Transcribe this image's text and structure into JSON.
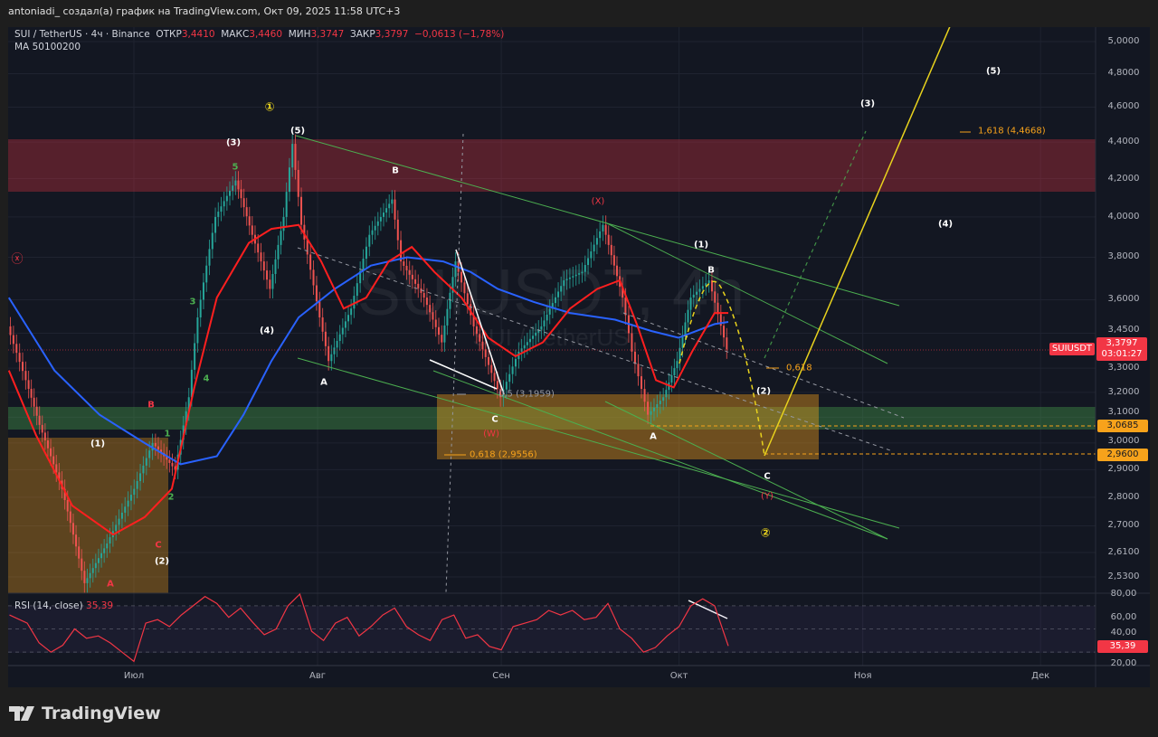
{
  "caption": "antoniadi_ создал(а) график на TradingView.com, Окт 09, 2025 11:58 UTC+3",
  "legend": {
    "symbol": "SUI / TetherUS · 4ч · Binance",
    "open_label": "ОТКР",
    "open": "3,4410",
    "high_label": "МАКС",
    "high": "3,4460",
    "low_label": "МИН",
    "low": "3,3747",
    "close_label": "ЗАКР",
    "close": "3,3797",
    "change": "−0,0613 (−1,78%)",
    "ma": "MA 50100200",
    "rsi_label": "RSI (14, close)",
    "rsi_value": "35,39"
  },
  "watermark": {
    "line1": "SUIUSDT, 4h",
    "line2": "SUI / TetherUS"
  },
  "badges": {
    "symbol": "SUIUSDT",
    "price": "3,3797",
    "countdown": "03:01:27",
    "level1": "3,0685",
    "level2": "2,9600",
    "rsi": "35,39"
  },
  "colors": {
    "up": "#26a69a",
    "down": "#ef5350",
    "ma50": "#ff1f1f",
    "ma200": "#2962ff",
    "rsi": "#f23645",
    "fib": "#f7a21b"
  },
  "fib": {
    "f05": "0,5 (3,1959)",
    "f0618": "0,618 (2,9556)",
    "f0618b": "0,618",
    "f1618": "1,618 (4,4668)"
  },
  "annotations": {
    "circ1": "①",
    "circ2": "②",
    "circx": "ⓧ",
    "w3a": "(3)",
    "w5a": "(5)",
    "w4a": "(4)",
    "w1a": "(1)",
    "w2a": "(2)",
    "w1b": "(1)",
    "w2b": "(2)",
    "w3b": "(3)",
    "w4b": "(4)",
    "w5b": "(5)",
    "g1": "1",
    "g2": "2",
    "g3": "3",
    "g4": "4",
    "g5": "5",
    "rA1": "A",
    "rB1": "B",
    "rC1": "C",
    "A1": "A",
    "B1": "B",
    "C1": "C",
    "A2": "A",
    "B2": "B",
    "C2": "C",
    "W": "(W)",
    "X": "(X)",
    "Y": "(Y)"
  },
  "brand": "TradingView",
  "chart_data": {
    "type": "candlestick",
    "title": "SUI / TetherUS · 4ч · Binance",
    "x_unit": "days since Jul 1, 2025",
    "y_scale": "log",
    "ylim": [
      2.45,
      5.05
    ],
    "y_ticks": [
      "5,0000",
      "4,8000",
      "4,6000",
      "4,4000",
      "4,2000",
      "4,0000",
      "3,8000",
      "3,6000",
      "3,4500",
      "3,3000",
      "3,2000",
      "3,1000",
      "3,0000",
      "2,9000",
      "2,8000",
      "2,7000",
      "2,6100",
      "2,5300"
    ],
    "y_tick_values": [
      5.0,
      4.8,
      4.6,
      4.4,
      4.2,
      4.0,
      3.8,
      3.6,
      3.45,
      3.3,
      3.2,
      3.1,
      3.0,
      2.9,
      2.8,
      2.7,
      2.61,
      2.53
    ],
    "x_ticks": [
      {
        "label": "Июл",
        "day": 0
      },
      {
        "label": "Авг",
        "day": 31
      },
      {
        "label": "Сен",
        "day": 62
      },
      {
        "label": "Окт",
        "day": 92
      },
      {
        "label": "Ноя",
        "day": 123
      },
      {
        "label": "Дек",
        "day": 153
      }
    ],
    "xlim": [
      -21.5,
      162
    ],
    "price": [
      [
        -21.1,
        3.48
      ],
      [
        -18,
        3.25
      ],
      [
        -15.7,
        3.07
      ],
      [
        -11.9,
        2.83
      ],
      [
        -8.1,
        2.51
      ],
      [
        -4.3,
        2.64
      ],
      [
        0.3,
        2.83
      ],
      [
        3.4,
        3.0
      ],
      [
        7.2,
        2.9
      ],
      [
        9.5,
        3.18
      ],
      [
        11,
        3.52
      ],
      [
        14,
        4.0
      ],
      [
        17.4,
        4.19
      ],
      [
        20.2,
        3.91
      ],
      [
        23.2,
        3.65
      ],
      [
        25.5,
        4.0
      ],
      [
        27,
        4.39
      ],
      [
        28.5,
        3.96
      ],
      [
        31.6,
        3.52
      ],
      [
        33.1,
        3.33
      ],
      [
        36.9,
        3.56
      ],
      [
        40,
        3.91
      ],
      [
        43.8,
        4.09
      ],
      [
        45.3,
        3.78
      ],
      [
        49.2,
        3.61
      ],
      [
        52.2,
        3.41
      ],
      [
        54.5,
        3.78
      ],
      [
        57.6,
        3.48
      ],
      [
        62.1,
        3.18
      ],
      [
        65.2,
        3.37
      ],
      [
        69,
        3.48
      ],
      [
        72.8,
        3.69
      ],
      [
        75.9,
        3.73
      ],
      [
        79.4,
        3.96
      ],
      [
        82.7,
        3.61
      ],
      [
        84.3,
        3.37
      ],
      [
        87,
        3.11
      ],
      [
        89.6,
        3.18
      ],
      [
        91.9,
        3.33
      ],
      [
        94.2,
        3.61
      ],
      [
        97.3,
        3.69
      ],
      [
        100.3,
        3.3797
      ]
    ],
    "ma50": [
      [
        -21.1,
        3.29
      ],
      [
        -16.5,
        3.03
      ],
      [
        -10.4,
        2.77
      ],
      [
        -3.5,
        2.67
      ],
      [
        1.8,
        2.73
      ],
      [
        6.4,
        2.83
      ],
      [
        10.2,
        3.22
      ],
      [
        14,
        3.61
      ],
      [
        19.4,
        3.87
      ],
      [
        23.2,
        3.94
      ],
      [
        27.8,
        3.96
      ],
      [
        31.6,
        3.78
      ],
      [
        35.4,
        3.56
      ],
      [
        39.2,
        3.61
      ],
      [
        43,
        3.78
      ],
      [
        46.9,
        3.85
      ],
      [
        50.7,
        3.73
      ],
      [
        55.3,
        3.61
      ],
      [
        59.8,
        3.43
      ],
      [
        64.4,
        3.35
      ],
      [
        69,
        3.41
      ],
      [
        73.6,
        3.56
      ],
      [
        78.2,
        3.65
      ],
      [
        82,
        3.69
      ],
      [
        85,
        3.48
      ],
      [
        88.1,
        3.25
      ],
      [
        91.1,
        3.22
      ],
      [
        94.2,
        3.37
      ],
      [
        98,
        3.54
      ],
      [
        100.3,
        3.54
      ]
    ],
    "ma200": [
      [
        -21.1,
        3.61
      ],
      [
        -13.4,
        3.29
      ],
      [
        -5.8,
        3.11
      ],
      [
        1.8,
        3.0
      ],
      [
        7.9,
        2.92
      ],
      [
        14,
        2.95
      ],
      [
        18.5,
        3.11
      ],
      [
        23.2,
        3.33
      ],
      [
        27.8,
        3.52
      ],
      [
        33.9,
        3.65
      ],
      [
        40,
        3.76
      ],
      [
        46.1,
        3.8
      ],
      [
        52.2,
        3.78
      ],
      [
        56.8,
        3.73
      ],
      [
        61.4,
        3.65
      ],
      [
        67.5,
        3.59
      ],
      [
        73.6,
        3.54
      ],
      [
        81.2,
        3.51
      ],
      [
        87.3,
        3.46
      ],
      [
        91.9,
        3.43
      ],
      [
        98,
        3.49
      ],
      [
        100.3,
        3.5
      ]
    ],
    "rsi": {
      "ylim": [
        20,
        80
      ],
      "levels": [
        70,
        50,
        30
      ],
      "y_ticks": [
        "80,00",
        "60,00",
        "40,00",
        "20,00"
      ],
      "values": [
        [
          -21,
          62
        ],
        [
          -18,
          55
        ],
        [
          -16,
          38
        ],
        [
          -14,
          30
        ],
        [
          -12,
          36
        ],
        [
          -10,
          50
        ],
        [
          -8,
          42
        ],
        [
          -6,
          44
        ],
        [
          -4,
          38
        ],
        [
          -2,
          30
        ],
        [
          0,
          22
        ],
        [
          2,
          55
        ],
        [
          4,
          58
        ],
        [
          6,
          52
        ],
        [
          8,
          62
        ],
        [
          10,
          70
        ],
        [
          12,
          78
        ],
        [
          14,
          72
        ],
        [
          16,
          60
        ],
        [
          18,
          68
        ],
        [
          20,
          56
        ],
        [
          22,
          45
        ],
        [
          24,
          50
        ],
        [
          26,
          70
        ],
        [
          28,
          82
        ],
        [
          30,
          48
        ],
        [
          32,
          40
        ],
        [
          34,
          55
        ],
        [
          36,
          60
        ],
        [
          38,
          44
        ],
        [
          40,
          52
        ],
        [
          42,
          62
        ],
        [
          44,
          68
        ],
        [
          46,
          52
        ],
        [
          48,
          45
        ],
        [
          50,
          40
        ],
        [
          52,
          58
        ],
        [
          54,
          62
        ],
        [
          56,
          42
        ],
        [
          58,
          45
        ],
        [
          60,
          35
        ],
        [
          62,
          32
        ],
        [
          64,
          52
        ],
        [
          66,
          55
        ],
        [
          68,
          58
        ],
        [
          70,
          66
        ],
        [
          72,
          62
        ],
        [
          74,
          66
        ],
        [
          76,
          58
        ],
        [
          78,
          60
        ],
        [
          80,
          72
        ],
        [
          82,
          50
        ],
        [
          84,
          42
        ],
        [
          86,
          30
        ],
        [
          88,
          34
        ],
        [
          90,
          44
        ],
        [
          92,
          52
        ],
        [
          94,
          70
        ],
        [
          96,
          76
        ],
        [
          98,
          70
        ],
        [
          100.3,
          35.39
        ]
      ]
    },
    "zones": [
      {
        "name": "resistance",
        "from": 4.13,
        "to": 4.42
      },
      {
        "name": "support",
        "from": 3.06,
        "to": 3.14
      }
    ],
    "levels": [
      3.0685,
      2.96,
      3.3797
    ]
  }
}
